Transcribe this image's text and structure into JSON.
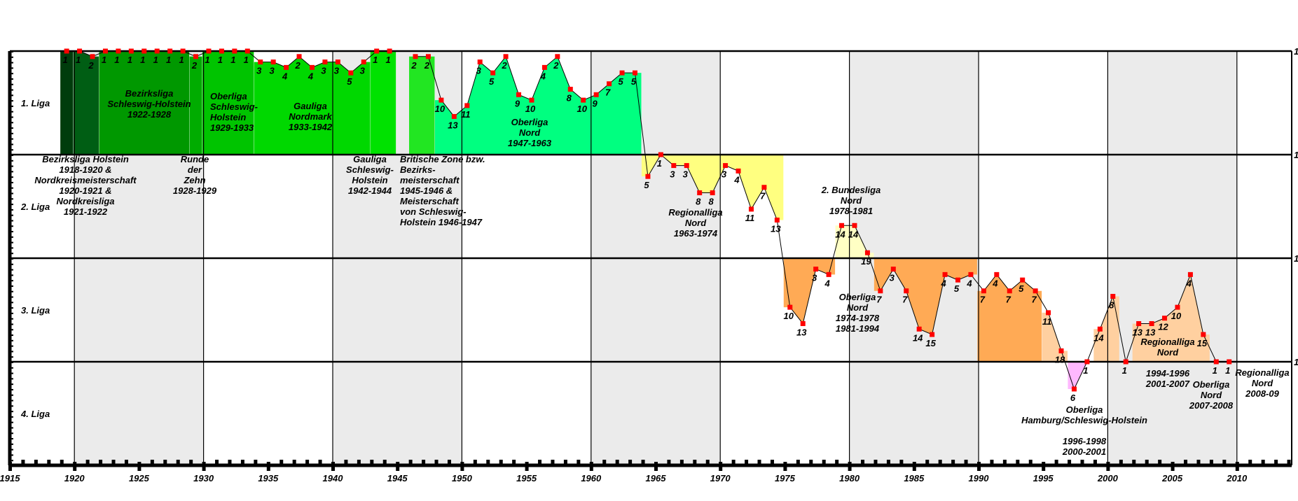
{
  "chart_data": {
    "type": "line",
    "title": "",
    "xlabel": "",
    "ylabel": "",
    "xlim": [
      1915,
      2014
    ],
    "x_ticks": [
      1915,
      1920,
      1925,
      1930,
      1935,
      1940,
      1945,
      1950,
      1955,
      1960,
      1965,
      1970,
      1975,
      1980,
      1985,
      1990,
      1995,
      2000,
      2005,
      2010
    ],
    "levels": [
      "1. Liga",
      "2. Liga",
      "3. Liga",
      "4. Liga"
    ],
    "right_axis_labels": [
      "1",
      "1",
      "1",
      "1"
    ],
    "grid": true,
    "shaded_decades": [
      [
        1920,
        1930
      ],
      [
        1940,
        1950
      ],
      [
        1960,
        1970
      ],
      [
        1980,
        1990
      ],
      [
        2000,
        2010
      ]
    ],
    "colors": {
      "line": "#000000",
      "marker": "#ff0000",
      "shade": "#ebebeb"
    },
    "points": [
      {
        "year": 1919,
        "level": 1,
        "position": 1
      },
      {
        "year": 1920,
        "level": 1,
        "position": 1
      },
      {
        "year": 1921,
        "level": 1,
        "position": 2
      },
      {
        "year": 1922,
        "level": 1,
        "position": 1
      },
      {
        "year": 1923,
        "level": 1,
        "position": 1
      },
      {
        "year": 1924,
        "level": 1,
        "position": 1
      },
      {
        "year": 1925,
        "level": 1,
        "position": 1
      },
      {
        "year": 1926,
        "level": 1,
        "position": 1
      },
      {
        "year": 1927,
        "level": 1,
        "position": 1
      },
      {
        "year": 1928,
        "level": 1,
        "position": 1
      },
      {
        "year": 1929,
        "level": 1,
        "position": 2
      },
      {
        "year": 1930,
        "level": 1,
        "position": 1
      },
      {
        "year": 1931,
        "level": 1,
        "position": 1
      },
      {
        "year": 1932,
        "level": 1,
        "position": 1
      },
      {
        "year": 1933,
        "level": 1,
        "position": 1
      },
      {
        "year": 1934,
        "level": 1,
        "position": 3
      },
      {
        "year": 1935,
        "level": 1,
        "position": 3
      },
      {
        "year": 1936,
        "level": 1,
        "position": 4
      },
      {
        "year": 1937,
        "level": 1,
        "position": 2
      },
      {
        "year": 1938,
        "level": 1,
        "position": 4
      },
      {
        "year": 1939,
        "level": 1,
        "position": 3
      },
      {
        "year": 1940,
        "level": 1,
        "position": 3
      },
      {
        "year": 1941,
        "level": 1,
        "position": 5
      },
      {
        "year": 1942,
        "level": 1,
        "position": 3
      },
      {
        "year": 1943,
        "level": 1,
        "position": 1
      },
      {
        "year": 1944,
        "level": 1,
        "position": 1
      },
      {
        "year": 1946,
        "level": 1,
        "position": 2
      },
      {
        "year": 1947,
        "level": 1,
        "position": 2
      },
      {
        "year": 1948,
        "level": 1,
        "position": 10
      },
      {
        "year": 1949,
        "level": 1,
        "position": 13
      },
      {
        "year": 1950,
        "level": 1,
        "position": 11
      },
      {
        "year": 1951,
        "level": 1,
        "position": 3
      },
      {
        "year": 1952,
        "level": 1,
        "position": 5
      },
      {
        "year": 1953,
        "level": 1,
        "position": 2
      },
      {
        "year": 1954,
        "level": 1,
        "position": 9
      },
      {
        "year": 1955,
        "level": 1,
        "position": 10
      },
      {
        "year": 1956,
        "level": 1,
        "position": 4
      },
      {
        "year": 1957,
        "level": 1,
        "position": 2
      },
      {
        "year": 1958,
        "level": 1,
        "position": 8
      },
      {
        "year": 1959,
        "level": 1,
        "position": 10
      },
      {
        "year": 1960,
        "level": 1,
        "position": 9
      },
      {
        "year": 1961,
        "level": 1,
        "position": 7
      },
      {
        "year": 1962,
        "level": 1,
        "position": 5
      },
      {
        "year": 1963,
        "level": 1,
        "position": 5
      },
      {
        "year": 1964,
        "level": 2,
        "position": 5
      },
      {
        "year": 1965,
        "level": 2,
        "position": 1
      },
      {
        "year": 1966,
        "level": 2,
        "position": 3
      },
      {
        "year": 1967,
        "level": 2,
        "position": 3
      },
      {
        "year": 1968,
        "level": 2,
        "position": 8
      },
      {
        "year": 1969,
        "level": 2,
        "position": 8
      },
      {
        "year": 1970,
        "level": 2,
        "position": 3
      },
      {
        "year": 1971,
        "level": 2,
        "position": 4
      },
      {
        "year": 1972,
        "level": 2,
        "position": 11
      },
      {
        "year": 1973,
        "level": 2,
        "position": 7
      },
      {
        "year": 1974,
        "level": 2,
        "position": 13
      },
      {
        "year": 1975,
        "level": 3,
        "position": 10
      },
      {
        "year": 1976,
        "level": 3,
        "position": 13
      },
      {
        "year": 1977,
        "level": 3,
        "position": 3
      },
      {
        "year": 1978,
        "level": 3,
        "position": 4
      },
      {
        "year": 1979,
        "level": 2,
        "position": 14
      },
      {
        "year": 1980,
        "level": 2,
        "position": 14
      },
      {
        "year": 1981,
        "level": 2,
        "position": 19
      },
      {
        "year": 1982,
        "level": 3,
        "position": 7
      },
      {
        "year": 1983,
        "level": 3,
        "position": 3
      },
      {
        "year": 1984,
        "level": 3,
        "position": 7
      },
      {
        "year": 1985,
        "level": 3,
        "position": 14
      },
      {
        "year": 1986,
        "level": 3,
        "position": 15
      },
      {
        "year": 1987,
        "level": 3,
        "position": 4
      },
      {
        "year": 1988,
        "level": 3,
        "position": 5
      },
      {
        "year": 1989,
        "level": 3,
        "position": 4
      },
      {
        "year": 1990,
        "level": 3,
        "position": 7
      },
      {
        "year": 1991,
        "level": 3,
        "position": 4
      },
      {
        "year": 1992,
        "level": 3,
        "position": 7
      },
      {
        "year": 1993,
        "level": 3,
        "position": 5
      },
      {
        "year": 1994,
        "level": 3,
        "position": 7
      },
      {
        "year": 1995,
        "level": 3,
        "position": 11
      },
      {
        "year": 1996,
        "level": 3,
        "position": 18
      },
      {
        "year": 1997,
        "level": 4,
        "position": 6
      },
      {
        "year": 1998,
        "level": 4,
        "position": 1
      },
      {
        "year": 1999,
        "level": 3,
        "position": 14
      },
      {
        "year": 2000,
        "level": 3,
        "position": 8
      },
      {
        "year": 2001,
        "level": 4,
        "position": 1
      },
      {
        "year": 2002,
        "level": 3,
        "position": 13
      },
      {
        "year": 2003,
        "level": 3,
        "position": 13
      },
      {
        "year": 2004,
        "level": 3,
        "position": 12
      },
      {
        "year": 2005,
        "level": 3,
        "position": 10
      },
      {
        "year": 2006,
        "level": 3,
        "position": 4
      },
      {
        "year": 2007,
        "level": 3,
        "position": 15
      },
      {
        "year": 2008,
        "level": 4,
        "position": 1
      },
      {
        "year": 2009,
        "level": 4,
        "position": 1
      }
    ],
    "league_fills": [
      {
        "from": 1919,
        "to": 1919,
        "level": 1,
        "color": "#003c0c"
      },
      {
        "from": 1920,
        "to": 1921,
        "level": 1,
        "color": "#005e14"
      },
      {
        "from": 1922,
        "to": 1928,
        "level": 1,
        "color": "#009800"
      },
      {
        "from": 1929,
        "to": 1929,
        "level": 1,
        "color": "#00ac00"
      },
      {
        "from": 1930,
        "to": 1933,
        "level": 1,
        "color": "#00c400"
      },
      {
        "from": 1934,
        "to": 1942,
        "level": 1,
        "color": "#00d800"
      },
      {
        "from": 1943,
        "to": 1944,
        "level": 1,
        "color": "#00e200"
      },
      {
        "from": 1946,
        "to": 1947,
        "level": 1,
        "color": "#22e622"
      },
      {
        "from": 1948,
        "to": 1963,
        "level": 1,
        "color": "#00ff80"
      },
      {
        "from": 1964,
        "to": 1974,
        "level": 2,
        "color": "#ffff80"
      },
      {
        "from": 1975,
        "to": 1978,
        "level": 3,
        "color": "#ffaa55"
      },
      {
        "from": 1979,
        "to": 1981,
        "level": 2,
        "color": "#ffffc4"
      },
      {
        "from": 1982,
        "to": 1989,
        "level": 3,
        "color": "#ffaa55"
      },
      {
        "from": 1990,
        "to": 1994,
        "level": 3,
        "color": "#ffaa55"
      },
      {
        "from": 1995,
        "to": 1996,
        "level": 3,
        "color": "#ffd0a0"
      },
      {
        "from": 1997,
        "to": 1998,
        "level": 4,
        "color": "#ffb8ff"
      },
      {
        "from": 1999,
        "to": 2000,
        "level": 3,
        "color": "#ffd0a0"
      },
      {
        "from": 2002,
        "to": 2007,
        "level": 3,
        "color": "#ffd0a0"
      }
    ],
    "annotations": [
      {
        "lines": [
          "Bezirksliga Holstein",
          "1918-1920 &",
          "Nordkreismeisterschaft",
          "1920-1921 &",
          "Nordkreisliga",
          "1921-1922"
        ]
      },
      {
        "lines": [
          "Bezirksliga",
          "Schleswig-Holstein",
          "1922-1928"
        ]
      },
      {
        "lines": [
          "Runde",
          "der",
          "Zehn",
          "1928-1929"
        ]
      },
      {
        "lines": [
          "Oberliga",
          "Schleswig-",
          "Holstein",
          "1929-1933"
        ]
      },
      {
        "lines": [
          "Gauliga",
          "Nordmark",
          "1933-1942"
        ]
      },
      {
        "lines": [
          "Gauliga",
          "Schleswig-",
          "Holstein",
          "1942-1944"
        ]
      },
      {
        "lines": [
          "Britische Zone bzw.",
          "Bezirks-",
          "meisterschaft",
          "1945-1946 &",
          "Meisterschaft",
          "von Schleswig-",
          "Holstein 1946-1947"
        ]
      },
      {
        "lines": [
          "Oberliga",
          "Nord",
          "1947-1963"
        ]
      },
      {
        "lines": [
          "Regionalliga",
          "Nord",
          "1963-1974"
        ]
      },
      {
        "lines": [
          "2. Bundesliga",
          "Nord",
          "1978-1981"
        ]
      },
      {
        "lines": [
          "Oberliga",
          "Nord",
          "1974-1978",
          "1981-1994"
        ]
      },
      {
        "lines": [
          "Oberliga",
          "Hamburg/Schleswig-Holstein",
          "",
          "1996-1998",
          "2000-2001"
        ]
      },
      {
        "lines": [
          "Regionalliga",
          "Nord",
          "",
          "1994-1996",
          "2001-2007"
        ]
      },
      {
        "lines": [
          "Oberliga",
          "Nord",
          "2007-2008"
        ]
      },
      {
        "lines": [
          "Regionalliga",
          "Nord",
          "2008-09"
        ]
      }
    ]
  }
}
